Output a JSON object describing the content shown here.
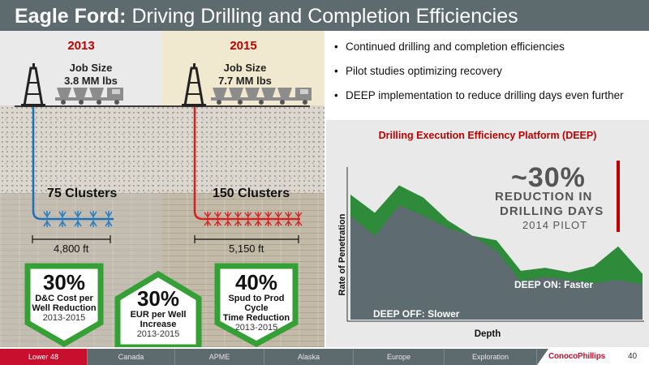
{
  "title": {
    "bold": "Eagle Ford:",
    "rest": " Driving Drilling and Completion Efficiencies"
  },
  "left": {
    "y2013": {
      "year": "2013",
      "job_line1": "Job Size",
      "job_line2": "3.8 MM lbs",
      "clusters": "75 Clusters",
      "distance": "4,800 ft",
      "cluster_count": 75
    },
    "y2015": {
      "year": "2015",
      "job_line1": "Job Size",
      "job_line2": "7.7 MM lbs",
      "clusters": "150 Clusters",
      "distance": "5,150 ft",
      "cluster_count": 150
    },
    "stats": [
      {
        "value": "30%",
        "line1": "D&C Cost per",
        "line2": "Well Reduction",
        "years": "2013-2015",
        "direction": "down"
      },
      {
        "value": "30%",
        "line1": "EUR per Well",
        "line2": "Increase",
        "years": "2013-2015",
        "direction": "up"
      },
      {
        "value": "40%",
        "line1": "Spud to Prod Cycle",
        "line2": "Time Reduction",
        "years": "2013-2015",
        "direction": "down"
      }
    ]
  },
  "bullets": [
    "Continued drilling and completion efficiencies",
    "Pilot studies optimizing recovery",
    "DEEP implementation to reduce drilling days even further"
  ],
  "chart": {
    "title": "Drilling Execution Efficiency Platform (DEEP)",
    "callout_value": "~30%",
    "callout_line1": "REDUCTION IN",
    "callout_line2": "DRILLING DAYS",
    "callout_line3": "2014 PILOT",
    "ylabel": "Rate of Penetration",
    "xlabel": "Depth",
    "label_on": "DEEP ON: Faster",
    "label_off": "DEEP OFF: Slower",
    "colors": {
      "on": "#2e8b3a",
      "off": "#5e6b70"
    }
  },
  "chart_data": {
    "type": "area",
    "title": "Drilling Execution Efficiency Platform (DEEP)",
    "xlabel": "Depth",
    "ylabel": "Rate of Penetration",
    "x": [
      0,
      1,
      2,
      3,
      4,
      5,
      6,
      7,
      8,
      9,
      10,
      11,
      12
    ],
    "series": [
      {
        "name": "DEEP ON: Faster",
        "values": [
          0.82,
          0.7,
          0.88,
          0.8,
          0.65,
          0.55,
          0.52,
          0.32,
          0.34,
          0.31,
          0.35,
          0.48,
          0.3
        ]
      },
      {
        "name": "DEEP OFF: Slower",
        "values": [
          0.68,
          0.55,
          0.75,
          0.68,
          0.6,
          0.55,
          0.45,
          0.25,
          0.28,
          0.26,
          0.24,
          0.26,
          0.23
        ]
      }
    ],
    "ylim": [
      0,
      1
    ]
  },
  "footer": {
    "tabs": [
      "Lower 48",
      "Canada",
      "APME",
      "Alaska",
      "Europe",
      "Exploration"
    ],
    "active_tab": 0,
    "logo": "ConocoPhillips",
    "page": "40",
    "colors": {
      "active": "#c8102e",
      "bar": "#5d6a6e"
    }
  }
}
